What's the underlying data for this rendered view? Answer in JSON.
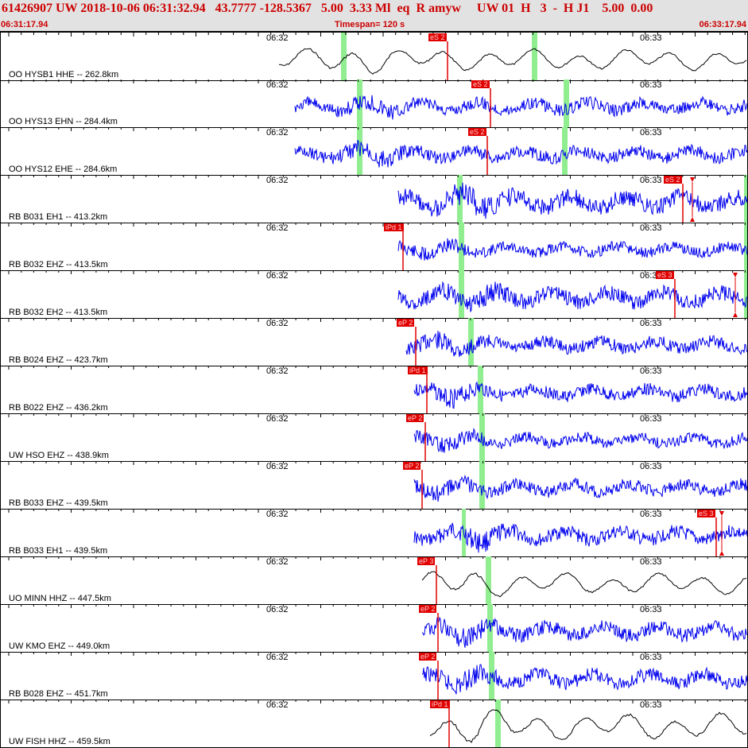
{
  "header": {
    "event_line": "61426907 UW 2018-10-06 06:31:32.94   43.7777 -128.5367   5.00  3.33 Ml  eq  R amyw     UW 01  H   3  -  H J1    5.00  0.00",
    "start_time": "06:31:17.94",
    "timespan": "Timespan= 120 s",
    "end_time": "06:33:17.94"
  },
  "minute_labels": [
    "06:32",
    "06:33"
  ],
  "colors": {
    "trace_black": "#000000",
    "trace_blue": "#0000ee",
    "pick": "#e00000",
    "window": "#90ee90",
    "header_bg": "#e2e2e2",
    "header_text": "#cc0000"
  },
  "traces": [
    {
      "label": "OO HYSB1 HHE -- 262.8km",
      "color": "black",
      "pick": "eS 2",
      "kind": "S",
      "amp": 16
    },
    {
      "label": "OO HYS13 EHN -- 284.4km",
      "color": "blue",
      "pick": "eS 2",
      "kind": "S",
      "amp": 16
    },
    {
      "label": "OO HYS12 EHE -- 284.6km",
      "color": "blue",
      "pick": "eS 2",
      "kind": "S",
      "amp": 16
    },
    {
      "label": "RB B031 EH1 -- 413.2km",
      "color": "blue",
      "pick": "eS 2",
      "kind": "S",
      "amp": 22
    },
    {
      "label": "RB B032 EHZ -- 413.5km",
      "color": "blue",
      "pick": "iPd 1",
      "kind": "P",
      "amp": 14
    },
    {
      "label": "RB B032 EH2 -- 413.5km",
      "color": "blue",
      "pick": "eS 3",
      "kind": "S",
      "amp": 20
    },
    {
      "label": "RB B024 EHZ -- 423.7km",
      "color": "blue",
      "pick": "eP 2",
      "kind": "P",
      "amp": 16
    },
    {
      "label": "RB B022 EHZ -- 436.2km",
      "color": "blue",
      "pick": "iPd 1",
      "kind": "P",
      "amp": 16
    },
    {
      "label": "UW HSO EHZ -- 438.9km",
      "color": "blue",
      "pick": "eP 2",
      "kind": "P",
      "amp": 14
    },
    {
      "label": "RB B033 EHZ -- 439.5km",
      "color": "blue",
      "pick": "eP 2",
      "kind": "P",
      "amp": 16
    },
    {
      "label": "RB B033 EH1 -- 439.5km",
      "color": "blue",
      "pick": "eS 3",
      "kind": "S",
      "amp": 18
    },
    {
      "label": "UO MINN HHZ -- 447.5km",
      "color": "black",
      "pick": "eP 3",
      "kind": "P",
      "amp": 16
    },
    {
      "label": "UW KMO EHZ -- 449.0km",
      "color": "blue",
      "pick": "eP 2",
      "kind": "P",
      "amp": 18
    },
    {
      "label": "RB B028 EHZ -- 451.7km",
      "color": "blue",
      "pick": "eP 2",
      "kind": "P",
      "amp": 18
    },
    {
      "label": "UW FISH HHZ -- 459.5km",
      "color": "black",
      "pick": "iPd 1",
      "kind": "P",
      "amp": 20
    }
  ]
}
